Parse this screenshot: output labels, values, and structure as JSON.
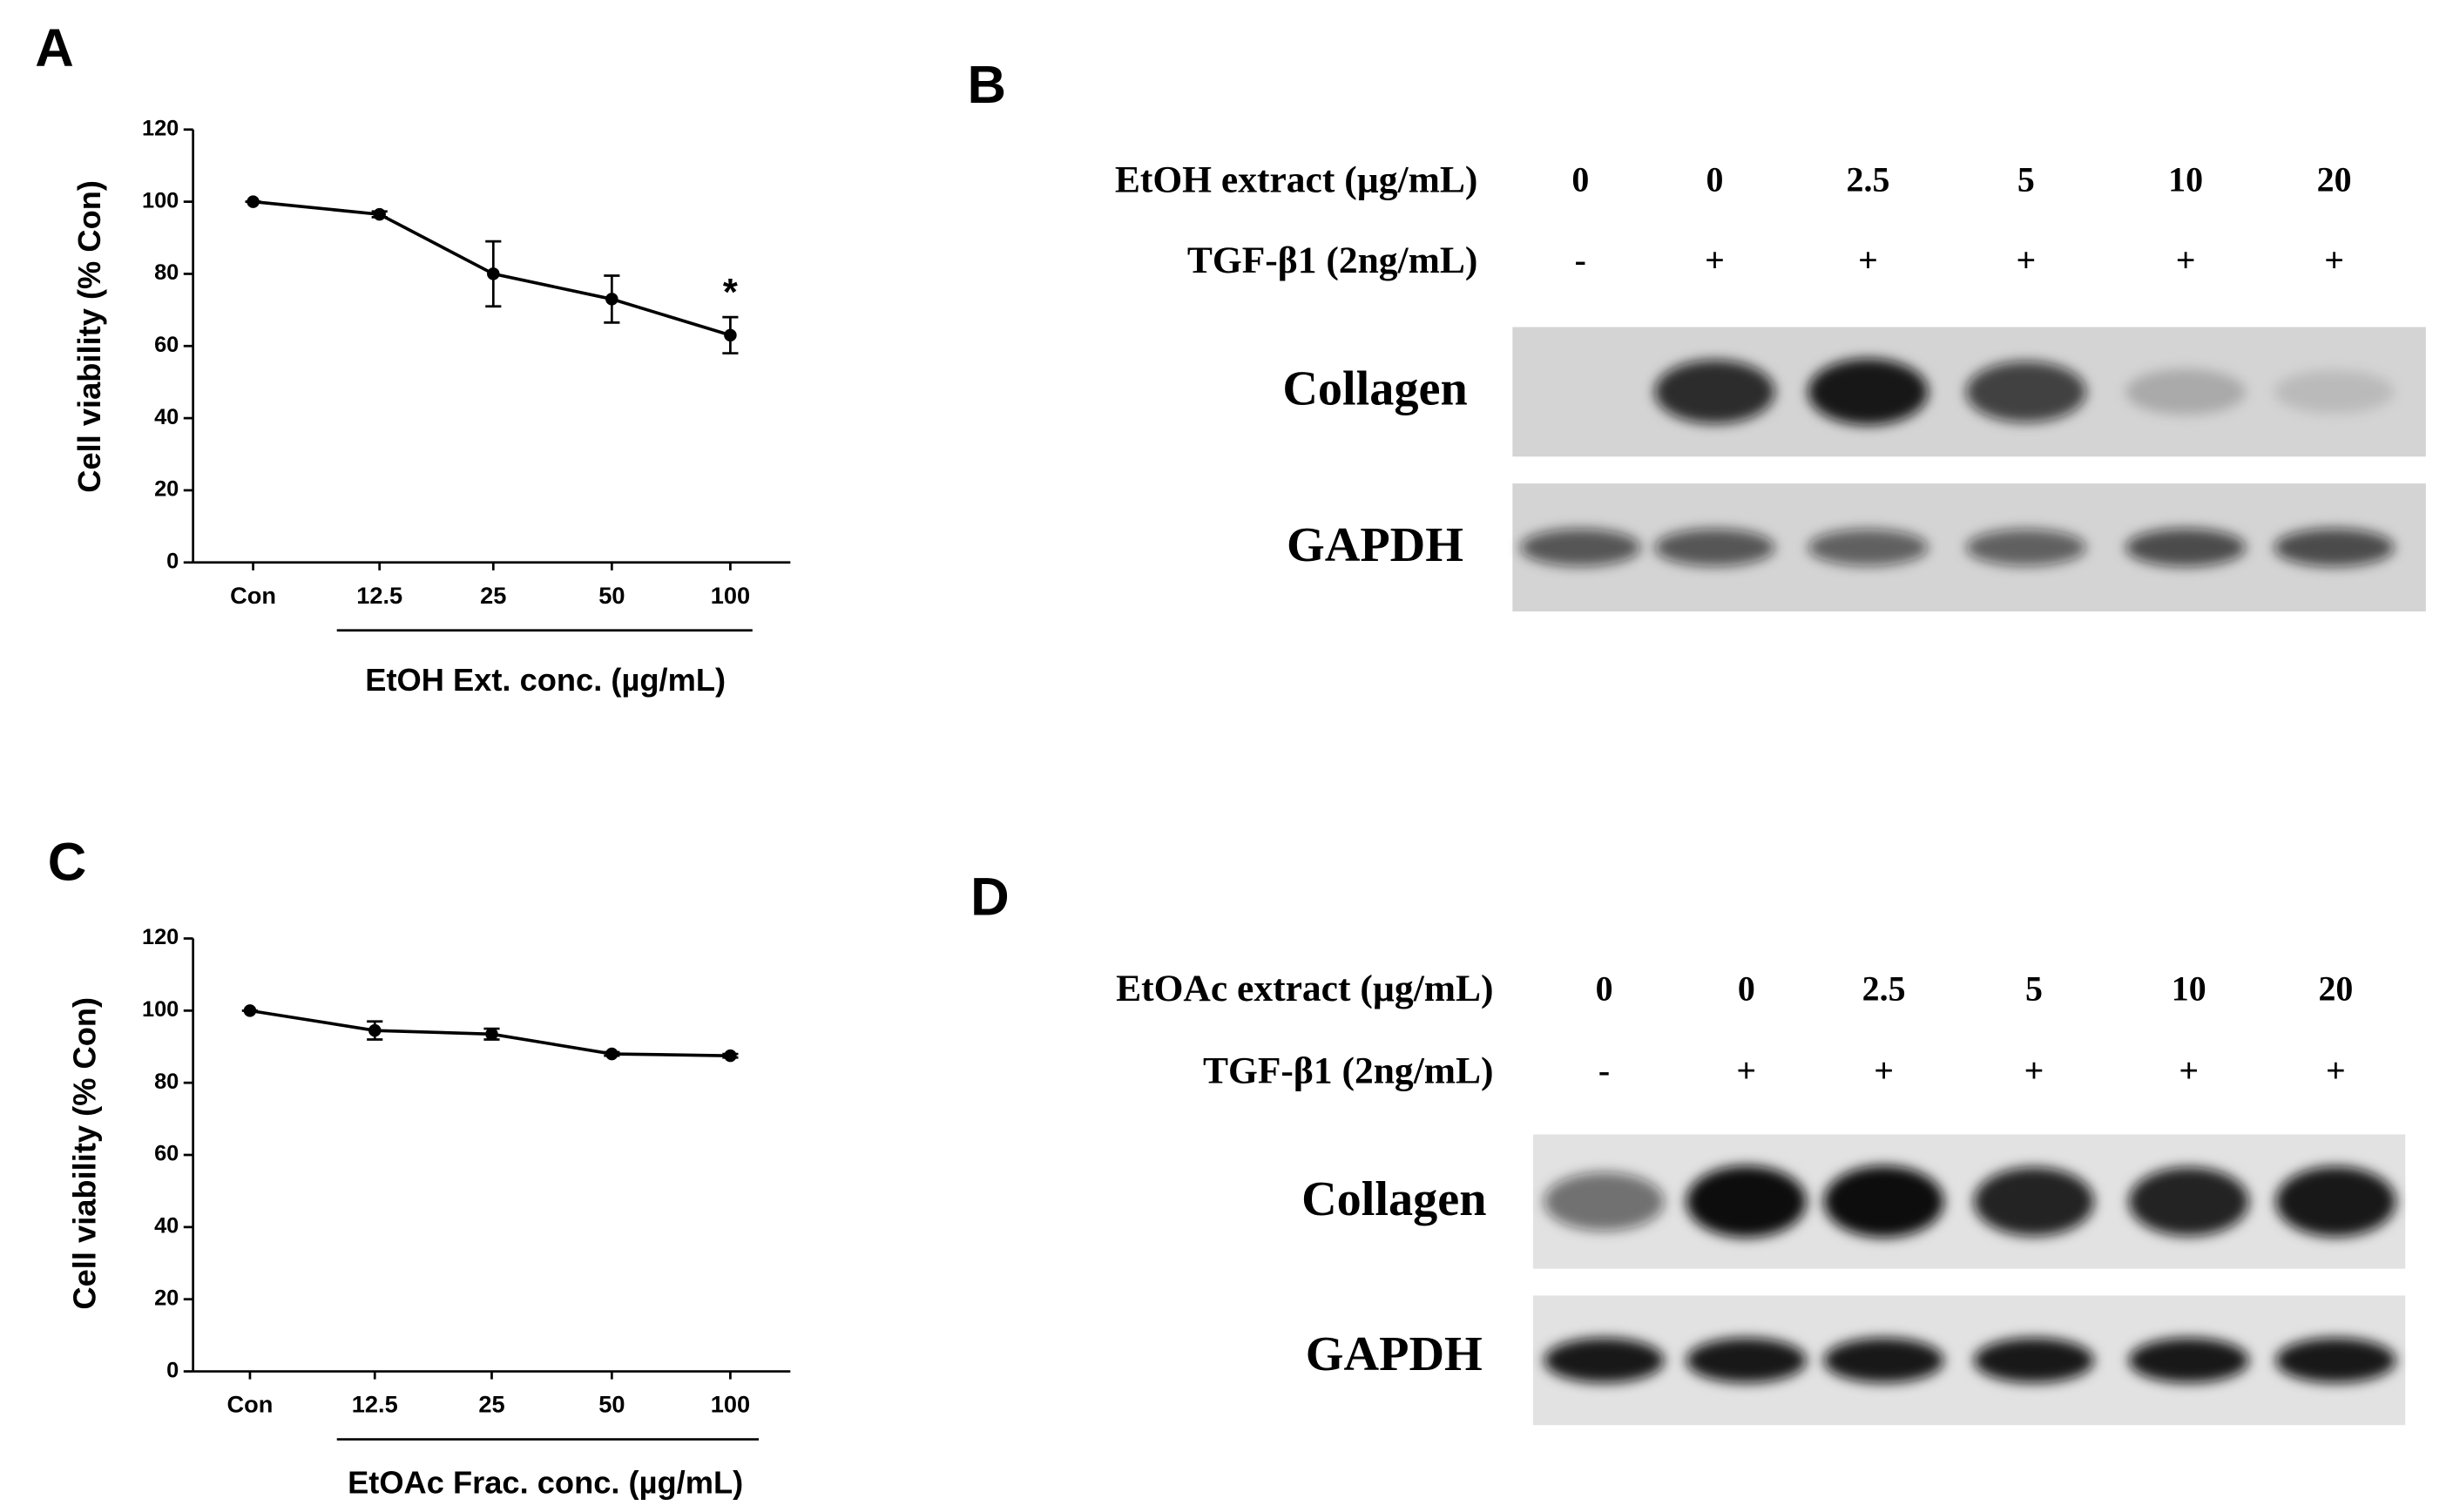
{
  "chart_data": [
    {
      "type": "line",
      "panel": "A",
      "ylabel": "Cell viability (% Con)",
      "xlabel": "EtOH Ext. conc. (µg/mL)",
      "categories": [
        "Con",
        "12.5",
        "25",
        "50",
        "100"
      ],
      "series": [
        {
          "color": "#000000",
          "values": [
            100,
            96.5,
            80,
            73,
            63
          ],
          "errors": [
            0,
            0.8,
            9,
            6.5,
            5
          ]
        }
      ],
      "significance": [
        null,
        null,
        null,
        null,
        "*"
      ],
      "ylim": [
        0,
        120
      ],
      "yticks": [
        0,
        20,
        40,
        60,
        80,
        100,
        120
      ]
    },
    {
      "type": "line",
      "panel": "C",
      "ylabel": "Cell viability (% Con)",
      "xlabel": "EtOAc Frac. conc. (µg/mL)",
      "categories": [
        "Con",
        "12.5",
        "25",
        "50",
        "100"
      ],
      "series": [
        {
          "color": "#000000",
          "values": [
            100,
            94.5,
            93.5,
            88,
            87.5
          ],
          "errors": [
            0,
            2.5,
            1.5,
            0.5,
            0.5
          ]
        }
      ],
      "ylim": [
        0,
        120
      ],
      "yticks": [
        0,
        20,
        40,
        60,
        80,
        100,
        120
      ]
    }
  ],
  "blots": [
    {
      "panel": "B",
      "conditions": [
        {
          "label": "EtOH extract (µg/mL)",
          "lanes": [
            0,
            0,
            2.5,
            5,
            10,
            20
          ]
        },
        {
          "label": "TGF-β1 (2ng/mL)",
          "lanes": [
            "-",
            "+",
            "+",
            "+",
            "+",
            "+"
          ]
        }
      ],
      "bands": [
        "Collagen",
        "GAPDH"
      ]
    },
    {
      "panel": "D",
      "conditions": [
        {
          "label": "EtOAc extract (µg/mL)",
          "lanes": [
            0,
            0,
            2.5,
            5,
            10,
            20
          ]
        },
        {
          "label": "TGF-β1 (2ng/mL)",
          "lanes": [
            "-",
            "+",
            "+",
            "+",
            "+",
            "+"
          ]
        }
      ],
      "bands": [
        "Collagen",
        "GAPDH"
      ]
    }
  ]
}
